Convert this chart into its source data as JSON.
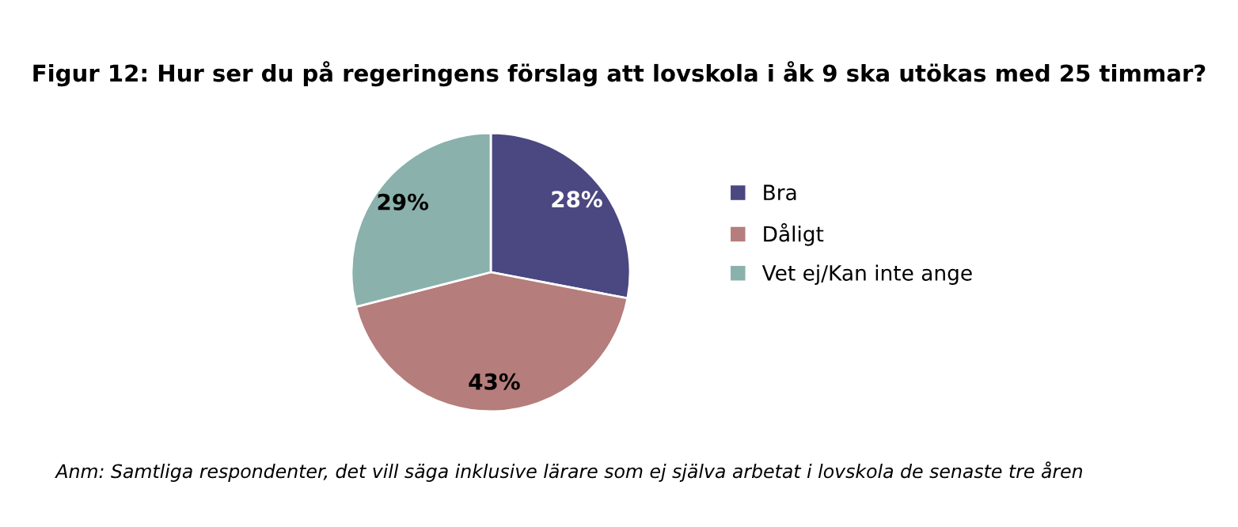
{
  "chart_data": {
    "type": "pie",
    "title": "Figur 12: Hur ser du på regeringens förslag att lovskola i åk 9 ska utökas med 25 timmar?",
    "categories": [
      "Bra",
      "Dåligt",
      "Vet ej/Kan inte ange"
    ],
    "values": [
      28,
      43,
      29
    ],
    "colors": [
      "#4a4781",
      "#b57d7b",
      "#8ab1ab"
    ],
    "value_labels": [
      "28%",
      "43%",
      "29%"
    ],
    "legend": "right",
    "annotations": [
      "Anm: Samtliga respondenter, det vill säga inklusive lärare som ej själva arbetat i lovskola de senaste tre åren"
    ]
  }
}
